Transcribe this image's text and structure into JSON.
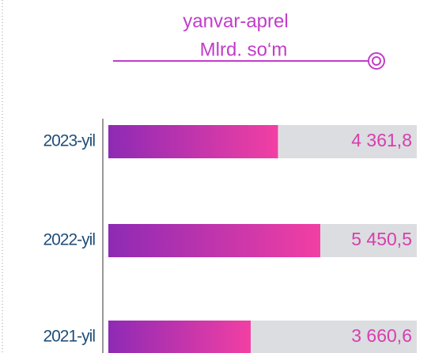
{
  "chart_data": {
    "type": "bar",
    "orientation": "horizontal",
    "title": "yanvar-aprel",
    "subtitle": "Mlrd. so‘m",
    "categories": [
      "2023-yil",
      "2022-yil",
      "2021-yil"
    ],
    "values": [
      4361.8,
      5450.5,
      3660.6
    ],
    "value_labels": [
      "4 361,8",
      "5 450,5",
      "3 660,6"
    ],
    "color": "#8e2ab5",
    "color_end": "#f23fa3"
  }
}
